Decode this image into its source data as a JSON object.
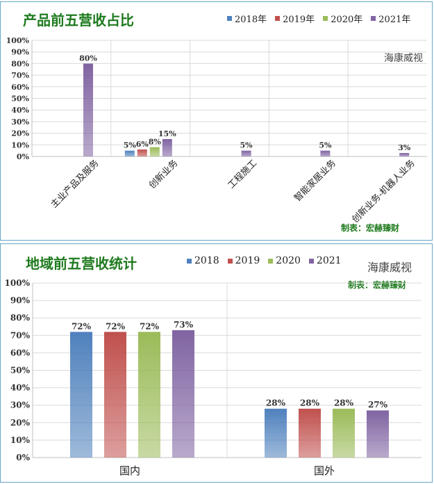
{
  "chart_data": [
    {
      "type": "bar",
      "title": "产品前五营收占比",
      "categories": [
        "主业产品及服务",
        "创新业务",
        "工程施工",
        "智能家居业务",
        "创新业务-机器人业务"
      ],
      "series": [
        {
          "name": "2018年",
          "values": [
            null,
            5,
            null,
            null,
            null
          ],
          "labels": [
            "",
            "5%",
            "",
            "",
            ""
          ],
          "color": "#4f81bd"
        },
        {
          "name": "2019年",
          "values": [
            null,
            6,
            null,
            null,
            null
          ],
          "labels": [
            "",
            "6%",
            "",
            "",
            ""
          ],
          "color": "#c0504d"
        },
        {
          "name": "2020年",
          "values": [
            null,
            8,
            null,
            null,
            null
          ],
          "labels": [
            "",
            "8%",
            "",
            "",
            ""
          ],
          "color": "#9bbb59"
        },
        {
          "name": "2021年",
          "values": [
            80,
            15,
            5,
            5,
            3
          ],
          "labels": [
            "80%",
            "15%",
            "5%",
            "5%",
            "3%"
          ],
          "color": "#8064a2"
        }
      ],
      "yticks": [
        "0%",
        "10%",
        "20%",
        "30%",
        "40%",
        "50%",
        "60%",
        "70%",
        "80%",
        "90%",
        "100%"
      ],
      "ylim": [
        0,
        100
      ],
      "grid": true,
      "legend": "top-right",
      "watermark": "海康威视",
      "credit": "制表：宏赫臻财"
    },
    {
      "type": "bar",
      "title": "地域前五营收统计",
      "categories": [
        "国内",
        "国外"
      ],
      "series": [
        {
          "name": "2018",
          "values": [
            72,
            28
          ],
          "labels": [
            "72%",
            "28%"
          ],
          "color": "#4f81bd"
        },
        {
          "name": "2019",
          "values": [
            72,
            28
          ],
          "labels": [
            "72%",
            "28%"
          ],
          "color": "#c0504d"
        },
        {
          "name": "2020",
          "values": [
            72,
            28
          ],
          "labels": [
            "72%",
            "28%"
          ],
          "color": "#9bbb59"
        },
        {
          "name": "2021",
          "values": [
            73,
            27
          ],
          "labels": [
            "73%",
            "27%"
          ],
          "color": "#8064a2"
        }
      ],
      "yticks": [
        "0%",
        "10%",
        "20%",
        "30%",
        "40%",
        "50%",
        "60%",
        "70%",
        "80%",
        "90%",
        "100%"
      ],
      "ylim": [
        0,
        100
      ],
      "grid": true,
      "legend": "top-center",
      "watermark": "海康威视",
      "credit": "制表：宏赫臻财"
    }
  ]
}
